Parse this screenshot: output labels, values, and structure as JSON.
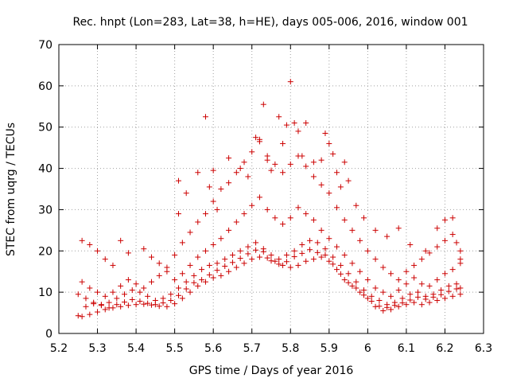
{
  "chart_data": {
    "type": "scatter",
    "title": "Rec. hnpt (Lon=283, Lat=38, h=HE), days 005-006, 2016, window 001",
    "xlabel": "GPS time / Days of year 2016",
    "ylabel": "STEC from uqrg / TECUs",
    "xlim": [
      5.2,
      6.3
    ],
    "ylim": [
      0,
      70
    ],
    "xticks": [
      "5.2",
      "5.3",
      "5.4",
      "5.5",
      "5.6",
      "5.7",
      "5.8",
      "5.9",
      "6",
      "6.1",
      "6.2",
      "6.3"
    ],
    "yticks": [
      "0",
      "10",
      "20",
      "30",
      "40",
      "50",
      "60",
      "70"
    ],
    "grid": true,
    "marker": "+",
    "marker_color": "#cc0000",
    "series": [
      {
        "points": [
          [
            5.25,
            4.3
          ],
          [
            5.26,
            4.1
          ],
          [
            5.28,
            4.6
          ],
          [
            5.3,
            5.2
          ],
          [
            5.32,
            5.8
          ],
          [
            5.34,
            6.2
          ],
          [
            5.36,
            6.5
          ],
          [
            5.38,
            6.8
          ],
          [
            5.4,
            7.0
          ],
          [
            5.42,
            7.1
          ],
          [
            5.44,
            6.9
          ],
          [
            5.46,
            6.6
          ],
          [
            5.48,
            6.5
          ],
          [
            5.5,
            7.2
          ],
          [
            5.52,
            8.5
          ],
          [
            5.54,
            10.0
          ],
          [
            5.56,
            11.5
          ],
          [
            5.58,
            12.5
          ],
          [
            5.6,
            13.5
          ],
          [
            5.62,
            14.0
          ],
          [
            5.64,
            15.0
          ],
          [
            5.66,
            16.0
          ],
          [
            5.68,
            17.0
          ],
          [
            5.7,
            18.0
          ],
          [
            5.72,
            18.5
          ],
          [
            5.74,
            18.3
          ],
          [
            5.76,
            17.5
          ],
          [
            5.78,
            16.5
          ],
          [
            5.8,
            16.0
          ],
          [
            5.82,
            16.5
          ],
          [
            5.84,
            17.5
          ],
          [
            5.86,
            18.0
          ],
          [
            5.88,
            18.5
          ],
          [
            5.9,
            17.5
          ],
          [
            5.92,
            15.5
          ],
          [
            5.94,
            13.0
          ],
          [
            5.96,
            11.5
          ],
          [
            5.98,
            10.0
          ],
          [
            6.0,
            8.5
          ],
          [
            6.02,
            6.5
          ],
          [
            6.04,
            5.5
          ],
          [
            6.06,
            5.8
          ],
          [
            6.08,
            6.5
          ],
          [
            6.1,
            7.0
          ],
          [
            6.12,
            7.5
          ],
          [
            6.14,
            7.0
          ],
          [
            6.16,
            7.5
          ],
          [
            6.18,
            8.0
          ],
          [
            6.2,
            8.5
          ],
          [
            6.22,
            9.0
          ],
          [
            6.24,
            9.5
          ],
          [
            5.25,
            9.5
          ],
          [
            5.27,
            8.5
          ],
          [
            5.29,
            7.5
          ],
          [
            5.31,
            7.0
          ],
          [
            5.33,
            7.5
          ],
          [
            5.35,
            8.5
          ],
          [
            5.37,
            9.5
          ],
          [
            5.39,
            10.5
          ],
          [
            5.41,
            10.0
          ],
          [
            5.43,
            9.0
          ],
          [
            5.45,
            8.0
          ],
          [
            5.47,
            8.5
          ],
          [
            5.49,
            9.5
          ],
          [
            5.51,
            11.0
          ],
          [
            5.53,
            12.5
          ],
          [
            5.55,
            14.0
          ],
          [
            5.57,
            15.5
          ],
          [
            5.59,
            16.5
          ],
          [
            5.61,
            17.0
          ],
          [
            5.63,
            18.0
          ],
          [
            5.65,
            19.0
          ],
          [
            5.67,
            20.0
          ],
          [
            5.69,
            21.0
          ],
          [
            5.71,
            22.0
          ],
          [
            5.73,
            20.5
          ],
          [
            5.75,
            19.0
          ],
          [
            5.77,
            18.0
          ],
          [
            5.79,
            19.0
          ],
          [
            5.81,
            20.0
          ],
          [
            5.83,
            21.5
          ],
          [
            5.85,
            22.5
          ],
          [
            5.87,
            22.0
          ],
          [
            5.89,
            20.5
          ],
          [
            5.91,
            18.5
          ],
          [
            5.93,
            16.5
          ],
          [
            5.95,
            14.5
          ],
          [
            5.97,
            12.5
          ],
          [
            5.99,
            10.5
          ],
          [
            6.01,
            9.0
          ],
          [
            6.03,
            8.0
          ],
          [
            6.05,
            7.0
          ],
          [
            6.07,
            7.5
          ],
          [
            6.09,
            8.5
          ],
          [
            6.11,
            9.5
          ],
          [
            6.13,
            10.0
          ],
          [
            6.15,
            9.0
          ],
          [
            6.17,
            9.5
          ],
          [
            6.19,
            10.5
          ],
          [
            6.21,
            11.5
          ],
          [
            6.23,
            12.0
          ],
          [
            5.26,
            12.5
          ],
          [
            5.28,
            11.0
          ],
          [
            5.3,
            10.0
          ],
          [
            5.32,
            9.0
          ],
          [
            5.34,
            10.0
          ],
          [
            5.36,
            11.5
          ],
          [
            5.38,
            13.0
          ],
          [
            5.4,
            12.0
          ],
          [
            5.42,
            11.0
          ],
          [
            5.44,
            12.5
          ],
          [
            5.46,
            14.0
          ],
          [
            5.48,
            15.0
          ],
          [
            5.5,
            13.0
          ],
          [
            5.52,
            14.5
          ],
          [
            5.54,
            16.5
          ],
          [
            5.56,
            18.5
          ],
          [
            5.58,
            20.0
          ],
          [
            5.6,
            21.5
          ],
          [
            5.62,
            23.0
          ],
          [
            5.64,
            25.0
          ],
          [
            5.66,
            27.0
          ],
          [
            5.68,
            29.0
          ],
          [
            5.7,
            31.0
          ],
          [
            5.72,
            33.0
          ],
          [
            5.74,
            30.0
          ],
          [
            5.76,
            28.0
          ],
          [
            5.78,
            26.5
          ],
          [
            5.8,
            28.0
          ],
          [
            5.82,
            30.5
          ],
          [
            5.84,
            29.0
          ],
          [
            5.86,
            27.5
          ],
          [
            5.88,
            25.0
          ],
          [
            5.9,
            23.0
          ],
          [
            5.92,
            21.0
          ],
          [
            5.94,
            19.0
          ],
          [
            5.96,
            17.0
          ],
          [
            5.98,
            15.0
          ],
          [
            6.0,
            13.0
          ],
          [
            6.02,
            11.0
          ],
          [
            6.04,
            10.0
          ],
          [
            6.06,
            9.0
          ],
          [
            6.08,
            10.5
          ],
          [
            6.1,
            12.0
          ],
          [
            6.12,
            13.5
          ],
          [
            6.14,
            12.0
          ],
          [
            6.16,
            11.5
          ],
          [
            6.18,
            13.0
          ],
          [
            6.2,
            14.5
          ],
          [
            6.22,
            15.5
          ],
          [
            6.24,
            17.0
          ],
          [
            5.26,
            22.5
          ],
          [
            5.28,
            21.5
          ],
          [
            5.3,
            20.0
          ],
          [
            5.32,
            18.0
          ],
          [
            5.34,
            16.5
          ],
          [
            5.36,
            22.5
          ],
          [
            5.38,
            19.5
          ],
          [
            5.42,
            20.5
          ],
          [
            5.44,
            18.5
          ],
          [
            5.46,
            17.0
          ],
          [
            5.48,
            16.0
          ],
          [
            5.5,
            19.0
          ],
          [
            5.52,
            22.0
          ],
          [
            5.54,
            24.5
          ],
          [
            5.56,
            27.0
          ],
          [
            5.58,
            29.0
          ],
          [
            5.6,
            32.0
          ],
          [
            5.62,
            35.0
          ],
          [
            5.64,
            36.5
          ],
          [
            5.66,
            39.0
          ],
          [
            5.68,
            41.5
          ],
          [
            5.7,
            44.0
          ],
          [
            5.72,
            46.5
          ],
          [
            5.74,
            43.0
          ],
          [
            5.76,
            41.0
          ],
          [
            5.78,
            39.0
          ],
          [
            5.8,
            41.0
          ],
          [
            5.82,
            43.0
          ],
          [
            5.84,
            40.5
          ],
          [
            5.86,
            38.0
          ],
          [
            5.88,
            36.0
          ],
          [
            5.9,
            34.0
          ],
          [
            5.92,
            30.5
          ],
          [
            5.94,
            27.5
          ],
          [
            5.96,
            25.0
          ],
          [
            5.98,
            22.5
          ],
          [
            6.0,
            20.0
          ],
          [
            6.02,
            18.0
          ],
          [
            6.04,
            16.0
          ],
          [
            6.06,
            14.5
          ],
          [
            6.08,
            13.0
          ],
          [
            6.1,
            15.0
          ],
          [
            6.12,
            16.5
          ],
          [
            6.14,
            18.0
          ],
          [
            6.16,
            19.5
          ],
          [
            6.18,
            21.0
          ],
          [
            6.2,
            22.5
          ],
          [
            6.22,
            24.0
          ],
          [
            6.24,
            20.0
          ],
          [
            5.51,
            29.0
          ],
          [
            5.51,
            37.0
          ],
          [
            5.53,
            34.0
          ],
          [
            5.56,
            39.0
          ],
          [
            5.58,
            52.5
          ],
          [
            5.59,
            35.5
          ],
          [
            5.6,
            39.5
          ],
          [
            5.61,
            30.0
          ],
          [
            5.64,
            42.5
          ],
          [
            5.67,
            40.0
          ],
          [
            5.69,
            38.0
          ],
          [
            5.71,
            47.5
          ],
          [
            5.72,
            47.0
          ],
          [
            5.73,
            55.5
          ],
          [
            5.74,
            42.0
          ],
          [
            5.75,
            39.5
          ],
          [
            5.77,
            52.5
          ],
          [
            5.78,
            46.0
          ],
          [
            5.79,
            50.5
          ],
          [
            5.8,
            61.0
          ],
          [
            5.81,
            51.0
          ],
          [
            5.82,
            49.0
          ],
          [
            5.83,
            43.0
          ],
          [
            5.84,
            51.0
          ],
          [
            5.86,
            41.5
          ],
          [
            5.88,
            42.0
          ],
          [
            5.89,
            48.5
          ],
          [
            5.9,
            46.0
          ],
          [
            5.91,
            43.5
          ],
          [
            5.92,
            39.0
          ],
          [
            5.93,
            35.5
          ],
          [
            5.94,
            41.5
          ],
          [
            5.95,
            37.0
          ],
          [
            5.97,
            31.0
          ],
          [
            5.99,
            28.0
          ],
          [
            6.02,
            25.0
          ],
          [
            6.05,
            23.5
          ],
          [
            6.08,
            25.5
          ],
          [
            6.11,
            21.5
          ],
          [
            6.15,
            20.0
          ],
          [
            6.18,
            25.5
          ],
          [
            6.2,
            27.5
          ],
          [
            6.22,
            28.0
          ],
          [
            6.23,
            22.0
          ],
          [
            6.24,
            18.0
          ],
          [
            6.24,
            11.0
          ],
          [
            5.27,
            6.5
          ],
          [
            5.29,
            7.2
          ],
          [
            5.31,
            6.8
          ],
          [
            5.33,
            6.2
          ],
          [
            5.35,
            7.0
          ],
          [
            5.37,
            7.6
          ],
          [
            5.39,
            8.2
          ],
          [
            5.41,
            7.8
          ],
          [
            5.43,
            7.3
          ],
          [
            5.45,
            7.0
          ],
          [
            5.47,
            7.4
          ],
          [
            5.49,
            8.0
          ],
          [
            5.51,
            9.2
          ],
          [
            5.53,
            10.8
          ],
          [
            5.55,
            12.3
          ],
          [
            5.57,
            13.0
          ],
          [
            5.59,
            14.2
          ],
          [
            5.61,
            15.3
          ],
          [
            5.63,
            16.3
          ],
          [
            5.65,
            17.2
          ],
          [
            5.67,
            18.2
          ],
          [
            5.69,
            19.3
          ],
          [
            5.71,
            20.2
          ],
          [
            5.73,
            19.8
          ],
          [
            5.75,
            17.6
          ],
          [
            5.77,
            16.8
          ],
          [
            5.79,
            17.4
          ],
          [
            5.81,
            18.6
          ],
          [
            5.83,
            19.4
          ],
          [
            5.85,
            20.3
          ],
          [
            5.87,
            19.6
          ],
          [
            5.89,
            19.0
          ],
          [
            5.91,
            16.8
          ],
          [
            5.93,
            14.4
          ],
          [
            5.95,
            12.3
          ],
          [
            5.97,
            11.0
          ],
          [
            5.99,
            9.3
          ],
          [
            6.01,
            7.8
          ],
          [
            6.03,
            6.6
          ],
          [
            6.05,
            6.3
          ],
          [
            6.07,
            6.8
          ],
          [
            6.09,
            7.4
          ],
          [
            6.11,
            8.1
          ],
          [
            6.13,
            8.8
          ],
          [
            6.15,
            8.3
          ],
          [
            6.17,
            8.8
          ],
          [
            6.19,
            9.4
          ],
          [
            6.21,
            10.2
          ],
          [
            6.23,
            10.8
          ]
        ]
      }
    ]
  }
}
